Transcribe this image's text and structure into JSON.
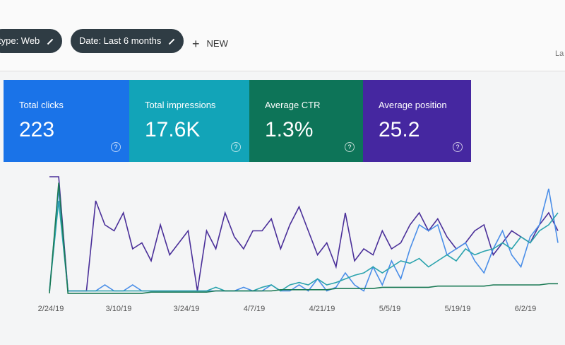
{
  "filters": [
    "type: Web",
    "Date: Last 6 months"
  ],
  "new_button": "NEW",
  "top_right": "La",
  "metrics": [
    {
      "label": "Total clicks",
      "value": "223"
    },
    {
      "label": "Total impressions",
      "value": "17.6K"
    },
    {
      "label": "Average CTR",
      "value": "1.3%"
    },
    {
      "label": "Average position",
      "value": "25.2"
    }
  ],
  "chart_data": {
    "type": "line",
    "x_labels": [
      "2/24/19",
      "3/10/19",
      "3/24/19",
      "4/7/19",
      "4/21/19",
      "5/5/19",
      "5/19/19",
      "6/2/19"
    ],
    "series": [
      {
        "color": "#4a2f99",
        "values": [
          100,
          100,
          5,
          5,
          5,
          80,
          60,
          55,
          70,
          40,
          45,
          30,
          60,
          35,
          45,
          55,
          5,
          55,
          40,
          70,
          50,
          40,
          55,
          55,
          65,
          40,
          60,
          75,
          55,
          35,
          45,
          25,
          70,
          30,
          40,
          35,
          55,
          40,
          45,
          60,
          70,
          55,
          65,
          50,
          40,
          45,
          55,
          60,
          35,
          45,
          55,
          50,
          45,
          60,
          70,
          55
        ]
      },
      {
        "color": "#4a8ee8",
        "values": [
          5,
          90,
          5,
          5,
          5,
          5,
          10,
          5,
          5,
          10,
          5,
          5,
          5,
          5,
          5,
          5,
          5,
          5,
          5,
          5,
          5,
          8,
          5,
          5,
          10,
          5,
          5,
          10,
          5,
          15,
          5,
          8,
          20,
          10,
          5,
          25,
          10,
          30,
          15,
          40,
          60,
          55,
          60,
          35,
          40,
          45,
          30,
          20,
          40,
          55,
          35,
          25,
          50,
          60,
          90,
          45
        ]
      },
      {
        "color": "#2aa3ad",
        "values": [
          5,
          80,
          5,
          5,
          5,
          5,
          5,
          5,
          5,
          5,
          5,
          5,
          5,
          5,
          5,
          5,
          5,
          5,
          8,
          5,
          5,
          5,
          5,
          8,
          10,
          5,
          10,
          12,
          10,
          15,
          10,
          12,
          15,
          18,
          20,
          25,
          20,
          25,
          30,
          28,
          32,
          25,
          30,
          35,
          30,
          40,
          35,
          38,
          40,
          45,
          40,
          50,
          45,
          55,
          60,
          70
        ]
      },
      {
        "color": "#1b7a55",
        "values": [
          3,
          95,
          3,
          3,
          3,
          3,
          3,
          3,
          3,
          3,
          3,
          4,
          4,
          4,
          4,
          4,
          4,
          4,
          5,
          5,
          5,
          5,
          5,
          5,
          5,
          6,
          6,
          6,
          6,
          6,
          6,
          7,
          7,
          7,
          7,
          7,
          8,
          8,
          8,
          8,
          8,
          8,
          9,
          9,
          9,
          9,
          9,
          9,
          10,
          10,
          10,
          10,
          10,
          10,
          11,
          11
        ]
      }
    ]
  }
}
